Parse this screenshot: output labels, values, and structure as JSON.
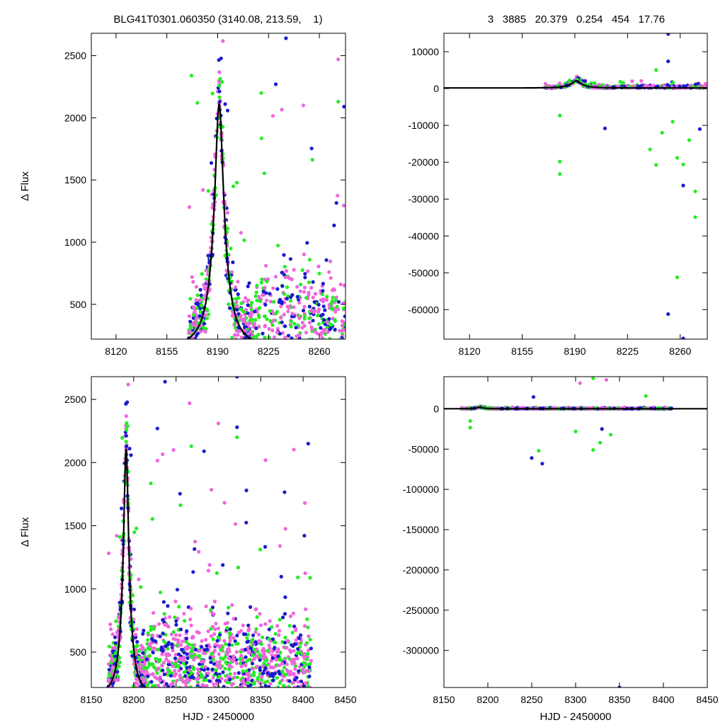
{
  "header": {
    "left_title": "BLG41T0301.060350 (3140.08, 213.59,    1)",
    "right_title": "3   3885   20.379   0.254   454   17.76"
  },
  "chart_data": [
    {
      "type": "scatter",
      "panel": "top-left",
      "title": "",
      "xlabel": "",
      "ylabel": "Δ Flux",
      "xlim": [
        8103,
        8278
      ],
      "ylim": [
        220,
        2680
      ],
      "xticks": [
        "8120",
        "8155",
        "8190",
        "8225",
        "8260"
      ],
      "yticks": [
        "500",
        "1000",
        "1500",
        "2000",
        "2500"
      ],
      "grid": false,
      "colors": {
        "series_1": "#ee66dd",
        "series_2": "#1a1acc",
        "series_3": "#22ee22",
        "model": "#000000"
      },
      "model": {
        "t0": 8191,
        "tE": 14,
        "u0": 0.21,
        "amplitude": 1950,
        "baseline": 160
      },
      "outliers": [
        {
          "series": "series_3",
          "x": 8172,
          "y": 2340
        },
        {
          "series": "series_3",
          "x": 8176,
          "y": 2120
        },
        {
          "series": "series_2",
          "x": 8237,
          "y": 2640
        },
        {
          "series": "series_2",
          "x": 8230,
          "y": 2270
        },
        {
          "series": "series_1",
          "x": 8273,
          "y": 2470
        },
        {
          "series": "series_3",
          "x": 8273,
          "y": 2130
        },
        {
          "series": "series_2",
          "x": 8277,
          "y": 2090
        },
        {
          "series": "series_3",
          "x": 8220,
          "y": 2200
        },
        {
          "series": "series_1",
          "x": 8249,
          "y": 2100
        }
      ]
    },
    {
      "type": "scatter",
      "panel": "top-right",
      "title": "",
      "xlabel": "",
      "ylabel": "",
      "xlim": [
        8103,
        8278
      ],
      "ylim": [
        -68000,
        15000
      ],
      "xticks": [
        "8120",
        "8155",
        "8190",
        "8225",
        "8260"
      ],
      "yticks": [
        "10000",
        "0",
        "-10000",
        "-20000",
        "-30000",
        "-40000",
        "-50000",
        "-60000"
      ],
      "grid": false,
      "outliers": [
        {
          "series": "series_3",
          "x": 8180,
          "y": -19800
        },
        {
          "series": "series_3",
          "x": 8180,
          "y": -23200
        },
        {
          "series": "series_3",
          "x": 8180,
          "y": -7300
        },
        {
          "series": "series_2",
          "x": 8252,
          "y": 14800
        },
        {
          "series": "series_2",
          "x": 8252,
          "y": 7400
        },
        {
          "series": "series_3",
          "x": 8244,
          "y": 5000
        },
        {
          "series": "series_2",
          "x": 8210,
          "y": -10800
        },
        {
          "series": "series_3",
          "x": 8240,
          "y": -16500
        },
        {
          "series": "series_3",
          "x": 8244,
          "y": -20700
        },
        {
          "series": "series_3",
          "x": 8258,
          "y": -18800
        },
        {
          "series": "series_3",
          "x": 8262,
          "y": -20600
        },
        {
          "series": "series_2",
          "x": 8262,
          "y": -26300
        },
        {
          "series": "series_3",
          "x": 8270,
          "y": -27900
        },
        {
          "series": "series_3",
          "x": 8270,
          "y": -34900
        },
        {
          "series": "series_3",
          "x": 8258,
          "y": -51200
        },
        {
          "series": "series_2",
          "x": 8252,
          "y": -61200
        },
        {
          "series": "series_2",
          "x": 8262,
          "y": -67800
        },
        {
          "series": "series_3",
          "x": 8248,
          "y": -12000
        },
        {
          "series": "series_3",
          "x": 8255,
          "y": -9000
        },
        {
          "series": "series_2",
          "x": 8273,
          "y": -11000
        },
        {
          "series": "series_3",
          "x": 8266,
          "y": -14000
        }
      ]
    },
    {
      "type": "scatter",
      "panel": "bottom-left",
      "title": "",
      "xlabel": "HJD - 2450000",
      "ylabel": "Δ Flux",
      "xlim": [
        8150,
        8450
      ],
      "ylim": [
        220,
        2680
      ],
      "xticks": [
        "8150",
        "8200",
        "8250",
        "8300",
        "8350",
        "8400",
        "8450"
      ],
      "yticks": [
        "500",
        "1000",
        "1500",
        "2000",
        "2500"
      ],
      "grid": false,
      "outliers": [
        {
          "series": "series_2",
          "x": 8237,
          "y": 2640
        },
        {
          "series": "series_2",
          "x": 8322,
          "y": 2680
        },
        {
          "series": "series_2",
          "x": 8228,
          "y": 2270
        },
        {
          "series": "series_1",
          "x": 8266,
          "y": 2470
        },
        {
          "series": "series_2",
          "x": 8283,
          "y": 2090
        },
        {
          "series": "series_3",
          "x": 8268,
          "y": 2130
        },
        {
          "series": "series_1",
          "x": 8300,
          "y": 2310
        },
        {
          "series": "series_2",
          "x": 8322,
          "y": 2280
        },
        {
          "series": "series_3",
          "x": 8322,
          "y": 2200
        },
        {
          "series": "series_2",
          "x": 8406,
          "y": 2150
        },
        {
          "series": "series_1",
          "x": 8402,
          "y": 1680
        },
        {
          "series": "series_2",
          "x": 8333,
          "y": 1780
        },
        {
          "series": "series_1",
          "x": 8247,
          "y": 2100
        }
      ]
    },
    {
      "type": "scatter",
      "panel": "bottom-right",
      "title": "",
      "xlabel": "HJD - 2450000",
      "ylabel": "",
      "xlim": [
        8150,
        8450
      ],
      "ylim": [
        -346000,
        40000
      ],
      "xticks": [
        "8150",
        "8200",
        "8250",
        "8300",
        "8350",
        "8400",
        "8450"
      ],
      "yticks": [
        "0",
        "-50000",
        "-100000",
        "-150000",
        "-200000",
        "-250000",
        "-300000"
      ],
      "grid": false,
      "outliers": [
        {
          "series": "series_2",
          "x": 8250,
          "y": -61000
        },
        {
          "series": "series_2",
          "x": 8262,
          "y": -68000
        },
        {
          "series": "series_3",
          "x": 8258,
          "y": -52000
        },
        {
          "series": "series_3",
          "x": 8320,
          "y": -51000
        },
        {
          "series": "series_3",
          "x": 8320,
          "y": 38000
        },
        {
          "series": "series_1",
          "x": 8335,
          "y": 36000
        },
        {
          "series": "series_2",
          "x": 8350,
          "y": -346000
        },
        {
          "series": "series_2",
          "x": 8252,
          "y": 14800
        },
        {
          "series": "series_3",
          "x": 8380,
          "y": 16000
        },
        {
          "series": "series_1",
          "x": 8305,
          "y": 32000
        },
        {
          "series": "series_3",
          "x": 8180,
          "y": -23200
        },
        {
          "series": "series_3",
          "x": 8180,
          "y": -15000
        },
        {
          "series": "series_3",
          "x": 8328,
          "y": -42000
        },
        {
          "series": "series_2",
          "x": 8330,
          "y": -25000
        },
        {
          "series": "series_3",
          "x": 8300,
          "y": -28000
        },
        {
          "series": "series_3",
          "x": 8340,
          "y": -32000
        }
      ]
    }
  ]
}
